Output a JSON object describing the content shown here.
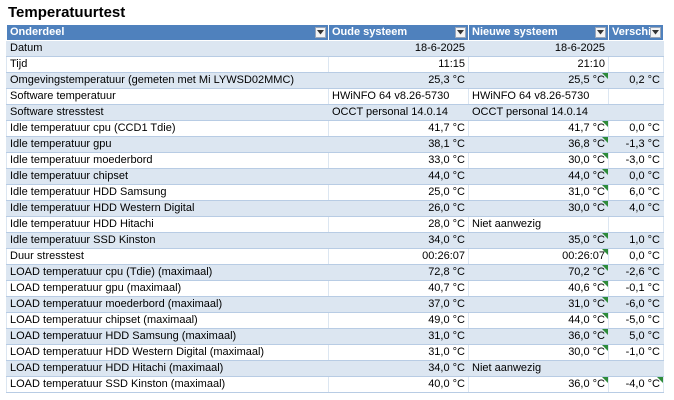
{
  "title": "Temperatuurtest",
  "headers": [
    "Onderdeel",
    "Oude systeem",
    "Nieuwe systeem",
    "Verschil"
  ],
  "header_icons": [
    "filter-dropdown-icon",
    "filter-dropdown-icon",
    "filter-dropdown-icon",
    "filter-dropdown-icon"
  ],
  "colors": {
    "header_bg": "#4f81bd",
    "band_bg": "#dce6f1",
    "error_indicator": "#2e8b3a"
  },
  "rows": [
    {
      "label": "Datum",
      "old": "18-6-2025",
      "new": "18-6-2025",
      "diff": "",
      "align": "num",
      "flag_new": false,
      "flag_diff": false
    },
    {
      "label": "Tijd",
      "old": "11:15",
      "new": "21:10",
      "diff": "",
      "align": "num",
      "flag_new": false,
      "flag_diff": false
    },
    {
      "label": "Omgevingstemperatuur (gemeten met Mi LYWSD02MMC)",
      "old": "25,3 °C",
      "new": "25,5 °C",
      "diff": "0,2 °C",
      "align": "num",
      "flag_new": true,
      "flag_diff": false
    },
    {
      "label": "Software temperatuur",
      "old": "HWiNFO 64 v8.26-5730",
      "new": "HWiNFO 64 v8.26-5730",
      "diff": "",
      "align": "txt",
      "flag_new": false,
      "flag_diff": false
    },
    {
      "label": "Software stresstest",
      "old": "OCCT personal 14.0.14",
      "new": "OCCT personal 14.0.14",
      "diff": "",
      "align": "txt",
      "flag_new": false,
      "flag_diff": false
    },
    {
      "label": "Idle temperatuur cpu (CCD1 Tdie)",
      "old": "41,7 °C",
      "new": "41,7 °C",
      "diff": "0,0 °C",
      "align": "num",
      "flag_new": true,
      "flag_diff": false
    },
    {
      "label": "Idle temperatuur gpu",
      "old": "38,1 °C",
      "new": "36,8 °C",
      "diff": "-1,3 °C",
      "align": "num",
      "flag_new": true,
      "flag_diff": false
    },
    {
      "label": "Idle temperatuur moederbord",
      "old": "33,0 °C",
      "new": "30,0 °C",
      "diff": "-3,0 °C",
      "align": "num",
      "flag_new": true,
      "flag_diff": false
    },
    {
      "label": "Idle temperatuur chipset",
      "old": "44,0 °C",
      "new": "44,0 °C",
      "diff": "0,0 °C",
      "align": "num",
      "flag_new": true,
      "flag_diff": false
    },
    {
      "label": "Idle temperatuur HDD Samsung",
      "old": "25,0 °C",
      "new": "31,0 °C",
      "diff": "6,0 °C",
      "align": "num",
      "flag_new": true,
      "flag_diff": false
    },
    {
      "label": "Idle temperatuur HDD Western Digital",
      "old": "26,0 °C",
      "new": "30,0 °C",
      "diff": "4,0 °C",
      "align": "num",
      "flag_new": true,
      "flag_diff": false
    },
    {
      "label": "Idle temperatuur HDD Hitachi",
      "old": "28,0 °C",
      "new": "Niet aanwezig",
      "diff": "",
      "align": "num",
      "new_align": "txt",
      "flag_new": false,
      "flag_diff": false
    },
    {
      "label": "Idle temperatuur SSD Kinston",
      "old": "34,0 °C",
      "new": "35,0 °C",
      "diff": "1,0 °C",
      "align": "num",
      "flag_new": true,
      "flag_diff": false
    },
    {
      "label": "Duur stresstest",
      "old": "00:26:07",
      "new": "00:26:07",
      "diff": "0,0 °C",
      "align": "num",
      "flag_new": true,
      "flag_diff": false
    },
    {
      "label": "LOAD temperatuur cpu (Tdie) (maximaal)",
      "old": "72,8 °C",
      "new": "70,2 °C",
      "diff": "-2,6 °C",
      "align": "num",
      "flag_new": true,
      "flag_diff": false
    },
    {
      "label": "LOAD temperatuur gpu (maximaal)",
      "old": "40,7 °C",
      "new": "40,6 °C",
      "diff": "-0,1 °C",
      "align": "num",
      "flag_new": true,
      "flag_diff": false
    },
    {
      "label": "LOAD temperatuur moederbord (maximaal)",
      "old": "37,0 °C",
      "new": "31,0 °C",
      "diff": "-6,0 °C",
      "align": "num",
      "flag_new": true,
      "flag_diff": false
    },
    {
      "label": "LOAD temperatuur chipset (maximaal)",
      "old": "49,0 °C",
      "new": "44,0 °C",
      "diff": "-5,0 °C",
      "align": "num",
      "flag_new": true,
      "flag_diff": false
    },
    {
      "label": "LOAD temperatuur HDD Samsung (maximaal)",
      "old": "31,0 °C",
      "new": "36,0 °C",
      "diff": "5,0 °C",
      "align": "num",
      "flag_new": true,
      "flag_diff": false
    },
    {
      "label": "LOAD temperatuur HDD Western Digital (maximaal)",
      "old": "31,0 °C",
      "new": "30,0 °C",
      "diff": "-1,0 °C",
      "align": "num",
      "flag_new": true,
      "flag_diff": false
    },
    {
      "label": "LOAD temperatuur HDD Hitachi (maximaal)",
      "old": "34,0 °C",
      "new": "Niet aanwezig",
      "diff": "",
      "align": "num",
      "new_align": "txt",
      "flag_new": false,
      "flag_diff": false
    },
    {
      "label": "LOAD temperatuur SSD Kinston (maximaal)",
      "old": "40,0 °C",
      "new": "36,0 °C",
      "diff": "-4,0 °C",
      "align": "num",
      "flag_new": true,
      "flag_diff": true
    }
  ]
}
